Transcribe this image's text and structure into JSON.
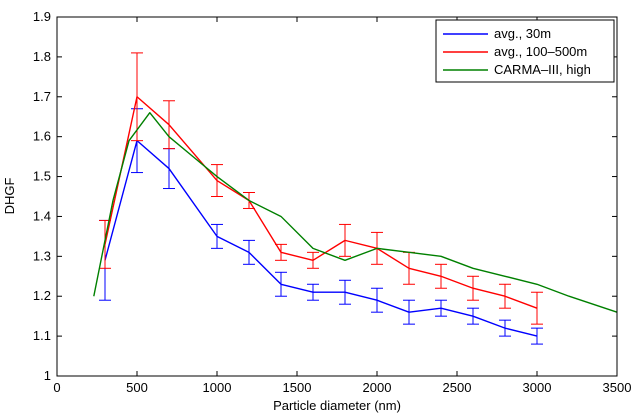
{
  "chart_data": {
    "type": "line",
    "title": "",
    "xlabel": "Particle diameter (nm)",
    "ylabel": "DHGF",
    "xlim": [
      0,
      3500
    ],
    "ylim": [
      1,
      1.9
    ],
    "x_ticks": [
      0,
      500,
      1000,
      1500,
      2000,
      2500,
      3000,
      3500
    ],
    "y_ticks": [
      1,
      1.1,
      1.2,
      1.3,
      1.4,
      1.5,
      1.6,
      1.7,
      1.8,
      1.9
    ],
    "x_tick_labels": [
      "0",
      "500",
      "1000",
      "1500",
      "2000",
      "2500",
      "3000",
      "3500"
    ],
    "y_tick_labels": [
      "1",
      "1.1",
      "1.2",
      "1.3",
      "1.4",
      "1.5",
      "1.6",
      "1.7",
      "1.8",
      "1.9"
    ],
    "grid": false,
    "legend_position": "top-right",
    "series": [
      {
        "name": "avg., 30m",
        "color": "#0000ff",
        "x": [
          300,
          500,
          700,
          1000,
          1200,
          1400,
          1600,
          1800,
          2000,
          2200,
          2400,
          2600,
          2800,
          3000
        ],
        "y": [
          1.29,
          1.59,
          1.52,
          1.35,
          1.31,
          1.23,
          1.21,
          1.21,
          1.19,
          1.16,
          1.17,
          1.15,
          1.12,
          1.1
        ],
        "error": [
          0.1,
          0.08,
          0.05,
          0.03,
          0.03,
          0.03,
          0.02,
          0.03,
          0.03,
          0.03,
          0.02,
          0.02,
          0.02,
          0.02
        ]
      },
      {
        "name": "avg., 100–500m",
        "color": "#ff0000",
        "x": [
          300,
          500,
          700,
          1000,
          1200,
          1400,
          1600,
          1800,
          2000,
          2200,
          2400,
          2600,
          2800,
          3000
        ],
        "y": [
          1.33,
          1.7,
          1.63,
          1.49,
          1.44,
          1.31,
          1.29,
          1.34,
          1.32,
          1.27,
          1.25,
          1.22,
          1.2,
          1.17
        ],
        "error": [
          0.06,
          0.11,
          0.06,
          0.04,
          0.02,
          0.02,
          0.02,
          0.04,
          0.04,
          0.04,
          0.03,
          0.03,
          0.03,
          0.04
        ]
      },
      {
        "name": "CARMA–III, high",
        "color": "#008000",
        "x": [
          230,
          350,
          450,
          580,
          700,
          850,
          1000,
          1200,
          1400,
          1600,
          1800,
          2000,
          2200,
          2400,
          2600,
          2800,
          3000,
          3200,
          3500
        ],
        "y": [
          1.2,
          1.44,
          1.59,
          1.66,
          1.6,
          1.55,
          1.5,
          1.44,
          1.4,
          1.32,
          1.29,
          1.32,
          1.31,
          1.3,
          1.27,
          1.25,
          1.23,
          1.2,
          1.16
        ]
      }
    ]
  }
}
